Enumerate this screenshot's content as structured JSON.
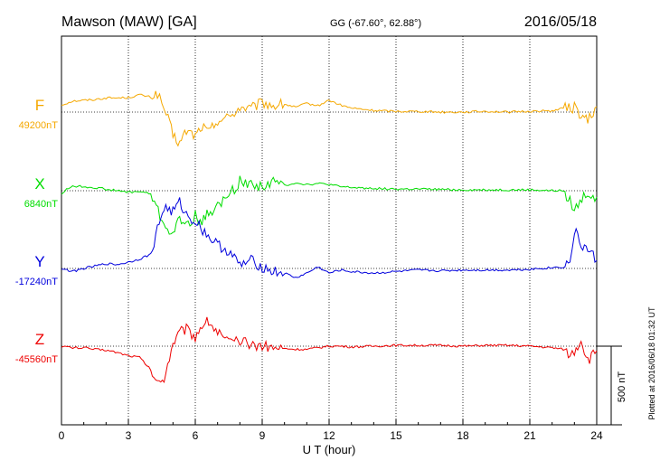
{
  "header": {
    "station": "Mawson (MAW)  [GA]",
    "coords": "GG (-67.60°,  62.88°)",
    "date": "2016/05/18"
  },
  "plotted_note": "Plotted at 2016/06/18 01:32 UT",
  "scale_label": "500 nT",
  "colors": {
    "F": "#f5a800",
    "X": "#00dd00",
    "Y": "#0000dd",
    "Z": "#ee0000"
  },
  "chart_data": {
    "type": "line",
    "xlabel": "U T (hour)",
    "xlim": [
      0,
      24
    ],
    "x_ticks": [
      "0",
      "3",
      "6",
      "9",
      "12",
      "15",
      "18",
      "21",
      "24"
    ],
    "scale_bar_nT": 500,
    "grid": "dotted",
    "series": [
      {
        "name": "F",
        "baseline_label": "49200nT",
        "x": [
          0,
          0.5,
          1,
          1.5,
          2,
          2.5,
          3,
          3.5,
          4,
          4.3,
          4.5,
          4.7,
          5,
          5.3,
          5.6,
          6,
          6.3,
          6.6,
          7,
          7.5,
          8,
          8.5,
          9,
          9.5,
          10,
          10.5,
          11,
          11.5,
          12,
          12.5,
          13,
          14,
          15,
          16,
          17,
          18,
          19,
          20,
          21,
          22,
          22.5,
          23,
          23.3,
          23.6,
          24
        ],
        "values": [
          45,
          70,
          75,
          80,
          90,
          90,
          92,
          110,
          95,
          120,
          50,
          -10,
          -150,
          -200,
          -120,
          -150,
          -90,
          -130,
          -50,
          -35,
          30,
          20,
          60,
          40,
          50,
          30,
          55,
          40,
          75,
          45,
          25,
          10,
          5,
          5,
          0,
          0,
          5,
          0,
          5,
          8,
          25,
          30,
          -20,
          -60,
          35
        ]
      },
      {
        "name": "X",
        "baseline_label": "6840nT",
        "x": [
          0,
          0.3,
          0.5,
          1,
          1.5,
          2,
          2.5,
          3,
          3.5,
          4,
          4.5,
          5,
          5.3,
          5.6,
          6,
          6.3,
          6.6,
          7,
          7.5,
          8,
          8.5,
          9,
          9.5,
          10,
          10.5,
          11,
          11.5,
          12,
          12.5,
          13,
          14,
          15,
          16,
          17,
          18,
          19,
          20,
          21,
          22,
          22.5,
          22.8,
          23,
          23.5,
          24
        ],
        "values": [
          -20,
          15,
          30,
          25,
          20,
          10,
          0,
          -10,
          -5,
          -20,
          -190,
          -280,
          -180,
          -220,
          -160,
          -200,
          -140,
          -100,
          -30,
          60,
          40,
          30,
          55,
          35,
          50,
          40,
          45,
          40,
          25,
          20,
          15,
          10,
          10,
          8,
          5,
          5,
          5,
          5,
          0,
          0,
          -60,
          -130,
          -20,
          -40
        ]
      },
      {
        "name": "Y",
        "baseline_label": "-17240nT",
        "x": [
          0,
          0.5,
          1,
          1.5,
          2,
          2.5,
          3,
          3.5,
          4,
          4.3,
          4.6,
          5,
          5.3,
          5.6,
          6,
          6.5,
          7,
          7.5,
          8,
          8.5,
          9,
          9.5,
          10,
          10.5,
          11,
          11.5,
          12,
          12.5,
          13,
          14,
          15,
          16,
          17,
          18,
          19,
          20,
          21,
          22,
          22.5,
          22.8,
          23,
          23.3,
          23.6,
          24
        ],
        "values": [
          0,
          -20,
          0,
          15,
          30,
          25,
          40,
          60,
          90,
          250,
          390,
          360,
          420,
          340,
          300,
          220,
          150,
          110,
          20,
          50,
          10,
          -20,
          -30,
          -60,
          -30,
          10,
          -30,
          -10,
          -20,
          -30,
          -20,
          -10,
          -15,
          -10,
          -10,
          -10,
          -5,
          5,
          10,
          40,
          240,
          150,
          120,
          50
        ]
      },
      {
        "name": "Z",
        "baseline_label": "-45560nT",
        "x": [
          0,
          0.5,
          1,
          1.5,
          2,
          2.5,
          3,
          3.5,
          4,
          4.3,
          4.6,
          5,
          5.3,
          5.6,
          6,
          6.3,
          6.6,
          7,
          7.5,
          8,
          8.5,
          9,
          9.5,
          10,
          10.5,
          11,
          11.5,
          12,
          12.5,
          13,
          14,
          15,
          16,
          17,
          18,
          19,
          20,
          21,
          22,
          22.5,
          22.8,
          23,
          23.3,
          23.6,
          24
        ],
        "values": [
          0,
          -10,
          -10,
          -20,
          -25,
          -40,
          -60,
          -70,
          -150,
          -240,
          -200,
          20,
          90,
          110,
          60,
          140,
          160,
          90,
          20,
          30,
          10,
          5,
          -10,
          -15,
          -20,
          -20,
          -10,
          0,
          0,
          -5,
          0,
          5,
          5,
          5,
          0,
          5,
          5,
          0,
          -10,
          -20,
          -60,
          -30,
          40,
          -90,
          -30
        ]
      }
    ]
  }
}
